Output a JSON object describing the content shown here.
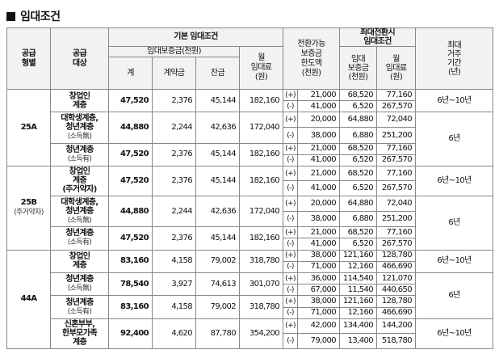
{
  "title": "임대조건",
  "headers": {
    "supply_type": "공급형별",
    "supply_target": "공급대상",
    "basic": "기본 임대조건",
    "deposit": "임대보증금(천원)",
    "total": "계",
    "contract": "계약금",
    "balance": "잔금",
    "monthly_rent": "월임대료(원)",
    "conversion_limit": "전환가능보증금한도액(천원)",
    "max_conversion": "최대전환시임대조건",
    "conv_deposit": "임대보증금(천원)",
    "conv_rent": "월임대료(원)",
    "max_period": "최대거주기간(년)"
  },
  "rows": [
    {
      "type": "25A",
      "target": "창업인계층",
      "note": "",
      "total": "47,520",
      "contract": "2,376",
      "balance": "45,144",
      "rent": "182,160",
      "conv": [
        {
          "sign": "(+)",
          "limit": "21,000",
          "dep": "68,520",
          "mrent": "77,160"
        },
        {
          "sign": "(-)",
          "limit": "41,000",
          "dep": "6,520",
          "mrent": "267,570"
        }
      ],
      "period": "6년~10년"
    },
    {
      "type": "25A",
      "target": "대학생계층,청년계층",
      "note": "(소득無)",
      "total": "44,880",
      "contract": "2,244",
      "balance": "42,636",
      "rent": "172,040",
      "conv": [
        {
          "sign": "(+)",
          "limit": "20,000",
          "dep": "64,880",
          "mrent": "72,040"
        },
        {
          "sign": "(-)",
          "limit": "38,000",
          "dep": "6,880",
          "mrent": "251,200"
        }
      ],
      "period": "6년"
    },
    {
      "type": "25A",
      "target": "청년계층",
      "note": "(소득有)",
      "total": "47,520",
      "contract": "2,376",
      "balance": "45,144",
      "rent": "182,160",
      "conv": [
        {
          "sign": "(+)",
          "limit": "21,000",
          "dep": "68,520",
          "mrent": "77,160"
        },
        {
          "sign": "(-)",
          "limit": "41,000",
          "dep": "6,520",
          "mrent": "267,570"
        }
      ],
      "period": ""
    },
    {
      "type": "25B",
      "type_note": "(주거약자)",
      "target": "창업인계층(주거약자)",
      "note": "",
      "total": "47,520",
      "contract": "2,376",
      "balance": "45,144",
      "rent": "182,160",
      "conv": [
        {
          "sign": "(+)",
          "limit": "21,000",
          "dep": "68,520",
          "mrent": "77,160"
        },
        {
          "sign": "(-)",
          "limit": "41,000",
          "dep": "6,520",
          "mrent": "267,570"
        }
      ],
      "period": "6년~10년"
    },
    {
      "type": "25B",
      "target": "대학생계층,청년계층",
      "note": "(소득無)",
      "total": "44,880",
      "contract": "2,244",
      "balance": "42,636",
      "rent": "172,040",
      "conv": [
        {
          "sign": "(+)",
          "limit": "20,000",
          "dep": "64,880",
          "mrent": "72,040"
        },
        {
          "sign": "(-)",
          "limit": "38,000",
          "dep": "6,880",
          "mrent": "251,200"
        }
      ],
      "period": "6년"
    },
    {
      "type": "25B",
      "target": "청년계층",
      "note": "(소득有)",
      "total": "47,520",
      "contract": "2,376",
      "balance": "45,144",
      "rent": "182,160",
      "conv": [
        {
          "sign": "(+)",
          "limit": "21,000",
          "dep": "68,520",
          "mrent": "77,160"
        },
        {
          "sign": "(-)",
          "limit": "41,000",
          "dep": "6,520",
          "mrent": "267,570"
        }
      ],
      "period": ""
    },
    {
      "type": "44A",
      "target": "창업인계층",
      "note": "",
      "total": "83,160",
      "contract": "4,158",
      "balance": "79,002",
      "rent": "318,780",
      "conv": [
        {
          "sign": "(+)",
          "limit": "38,000",
          "dep": "121,160",
          "mrent": "128,780"
        },
        {
          "sign": "(-)",
          "limit": "71,000",
          "dep": "12,160",
          "mrent": "466,690"
        }
      ],
      "period": "6년~10년"
    },
    {
      "type": "44A",
      "target": "청년계층",
      "note": "(소득無)",
      "total": "78,540",
      "contract": "3,927",
      "balance": "74,613",
      "rent": "301,070",
      "conv": [
        {
          "sign": "(+)",
          "limit": "36,000",
          "dep": "114,540",
          "mrent": "121,070"
        },
        {
          "sign": "(-)",
          "limit": "67,000",
          "dep": "11,540",
          "mrent": "440,650"
        }
      ],
      "period": "6년"
    },
    {
      "type": "44A",
      "target": "청년계층",
      "note": "(소득有)",
      "total": "83,160",
      "contract": "4,158",
      "balance": "79,002",
      "rent": "318,780",
      "conv": [
        {
          "sign": "(+)",
          "limit": "38,000",
          "dep": "121,160",
          "mrent": "128,780"
        },
        {
          "sign": "(-)",
          "limit": "71,000",
          "dep": "12,160",
          "mrent": "466,690"
        }
      ],
      "period": ""
    },
    {
      "type": "44A",
      "target": "신혼부부,한부모가족계층",
      "note": "",
      "total": "92,400",
      "contract": "4,620",
      "balance": "87,780",
      "rent": "354,200",
      "conv": [
        {
          "sign": "(+)",
          "limit": "42,000",
          "dep": "134,400",
          "mrent": "144,200"
        },
        {
          "sign": "(-)",
          "limit": "79,000",
          "dep": "13,400",
          "mrent": "518,780"
        }
      ],
      "period": "6년~10년"
    }
  ]
}
